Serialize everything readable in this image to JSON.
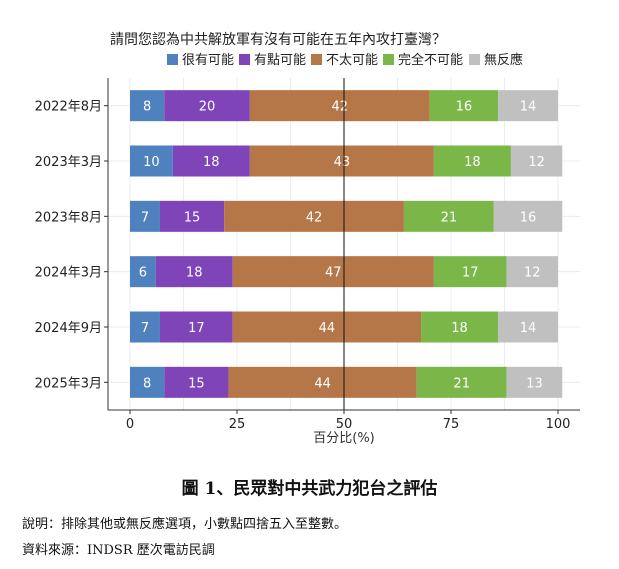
{
  "chart_data": {
    "type": "bar",
    "orientation": "horizontal",
    "stacked": true,
    "title": "請問您認為中共解放軍有沒有可能在五年內攻打臺灣？",
    "xlabel": "百分比(%)",
    "ylabel": "",
    "xlim": [
      0,
      100
    ],
    "x_ticks": [
      "0",
      "25",
      "50",
      "75",
      "100"
    ],
    "reference_line": 50,
    "grid": true,
    "legend_position": "top",
    "categories": [
      "2022年8月",
      "2023年3月",
      "2023年8月",
      "2024年3月",
      "2024年9月",
      "2025年3月"
    ],
    "series": [
      {
        "name": "很有可能",
        "color": "#4e81bd",
        "values": [
          8,
          10,
          7,
          6,
          7,
          8
        ]
      },
      {
        "name": "有點可能",
        "color": "#7f44b8",
        "values": [
          20,
          18,
          15,
          18,
          17,
          15
        ]
      },
      {
        "name": "不太可能",
        "color": "#b57748",
        "values": [
          42,
          43,
          42,
          47,
          44,
          44
        ]
      },
      {
        "name": "完全不可能",
        "color": "#7ab648",
        "values": [
          16,
          18,
          21,
          17,
          18,
          21
        ]
      },
      {
        "name": "無反應",
        "color": "#c0c0c0",
        "values": [
          14,
          12,
          16,
          12,
          14,
          13
        ]
      }
    ]
  },
  "caption": "圖 1、民眾對中共武力犯台之評估",
  "notes": [
    "說明：排除其他或無反應選項，小數點四捨五入至整數。",
    "資料來源：INDSR 歷次電訪民調"
  ]
}
